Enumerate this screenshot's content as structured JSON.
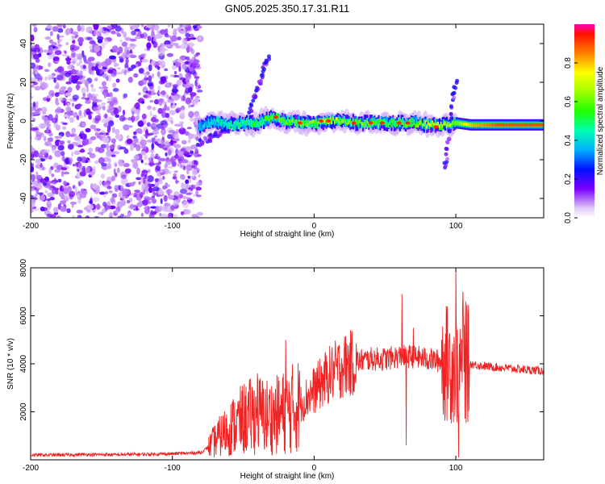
{
  "title": "GN05.2025.350.17.31.R11",
  "chart_data": [
    {
      "type": "heatmap",
      "xlabel": "Height of straight line (km)",
      "ylabel": "Frequency (Hz)",
      "xlim": [
        -200,
        162
      ],
      "ylim": [
        -50,
        50
      ],
      "xticks": [
        -200,
        -100,
        0,
        100
      ],
      "xtick_labels": [
        "-200",
        "-100",
        "0",
        "100"
      ],
      "yticks": [
        -40,
        -20,
        0,
        20,
        40
      ],
      "ytick_labels": [
        "-40",
        "-20",
        "0",
        "20",
        "40"
      ],
      "colorbar": {
        "label": "Normalized spectral amplitude",
        "range": [
          0,
          1
        ],
        "ticks": [
          0.0,
          0.2,
          0.4,
          0.6,
          0.8
        ],
        "tick_labels": [
          "0.0",
          "0.2",
          "0.4",
          "0.6",
          "0.8"
        ]
      },
      "noise_region_x": [
        -200,
        -82
      ],
      "signal_line": {
        "x": [
          -82,
          -70,
          -60,
          -50,
          -40,
          -30,
          -20,
          -10,
          0,
          10,
          20,
          30,
          40,
          50,
          60,
          70,
          80,
          90,
          100,
          110,
          120,
          130,
          140,
          150,
          162
        ],
        "freq_hz": [
          -3,
          0,
          -2,
          -1,
          -1,
          2,
          0,
          -1,
          -1,
          0,
          0,
          -1,
          -1,
          -1,
          -1,
          -1,
          -2,
          -2,
          -1,
          -2,
          -2,
          -2,
          -2,
          -2,
          -2
        ],
        "amplitude": [
          0.35,
          0.4,
          0.45,
          0.45,
          0.5,
          0.6,
          0.6,
          0.6,
          0.65,
          0.7,
          0.65,
          0.6,
          0.6,
          0.55,
          0.55,
          0.6,
          0.7,
          0.75,
          0.6,
          0.8,
          0.85,
          0.9,
          0.9,
          0.9,
          0.9
        ]
      },
      "streaks": [
        {
          "x": [
            -45,
            -32
          ],
          "freq_hz": [
            5,
            34
          ]
        },
        {
          "x": [
            -82,
            -60
          ],
          "freq_hz": [
            -12,
            -4
          ]
        },
        {
          "x": [
            92,
            100
          ],
          "freq_hz": [
            -25,
            22
          ]
        }
      ]
    },
    {
      "type": "line",
      "xlabel": "Height of straight line (km)",
      "ylabel": "SNR (10 * v/v)",
      "xlim": [
        -200,
        162
      ],
      "ylim": [
        0,
        8000
      ],
      "xticks": [
        -200,
        -100,
        0,
        100
      ],
      "xtick_labels": [
        "-200",
        "-100",
        "0",
        "100"
      ],
      "yticks": [
        2000,
        4000,
        6000,
        8000
      ],
      "ytick_labels": [
        "2000",
        "4000",
        "6000",
        "8000"
      ],
      "color": "#ee2222",
      "x": [
        -200,
        -180,
        -160,
        -140,
        -120,
        -100,
        -80,
        -75,
        -70,
        -60,
        -50,
        -40,
        -30,
        -20,
        -10,
        0,
        10,
        20,
        30,
        40,
        50,
        60,
        70,
        80,
        90,
        95,
        100,
        105,
        110,
        120,
        130,
        140,
        150,
        162
      ],
      "y": [
        200,
        200,
        220,
        210,
        230,
        250,
        300,
        500,
        800,
        1300,
        1700,
        1900,
        1800,
        2000,
        2300,
        2900,
        3500,
        3900,
        4100,
        4200,
        4200,
        4300,
        4300,
        4200,
        4100,
        4000,
        3900,
        3950,
        4000,
        3900,
        3850,
        3800,
        3750,
        3700
      ],
      "spikes": [
        {
          "x": -20,
          "y": 5000
        },
        {
          "x": -40,
          "y": 3600
        },
        {
          "x": 62,
          "y": 6900
        },
        {
          "x": 65,
          "y": 600
        },
        {
          "x": 70,
          "y": 5500
        },
        {
          "x": 100,
          "y": 8000
        },
        {
          "x": 102,
          "y": 100
        },
        {
          "x": 107,
          "y": 6600
        },
        {
          "x": 105,
          "y": 7000
        }
      ]
    }
  ]
}
